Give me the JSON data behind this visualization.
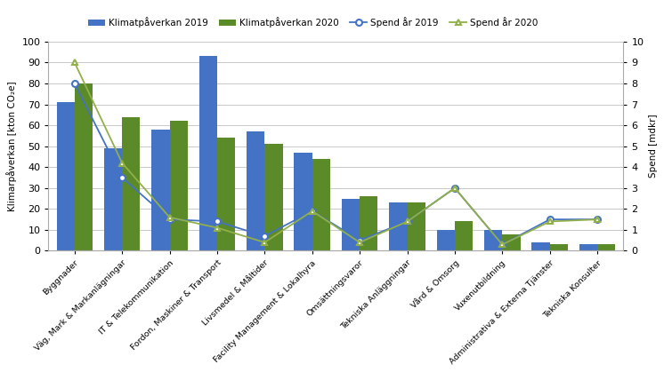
{
  "categories": [
    "Byggnader",
    "Väg, Mark & Markanlägningar",
    "IT & Telekommunikation",
    "Fordon, Maskiner & Transport",
    "Livsmedel & Måltider",
    "Facility Management & Lokalhyra",
    "Omsättningsvaror",
    "Tekniska Anläggningar",
    "Vård & Omsorg",
    "Vuxenutbildning",
    "Administrativa & Externa Tjänster",
    "Tekniska Konsulter"
  ],
  "klimat_2019": [
    71,
    49,
    58,
    93,
    57,
    47,
    25,
    23,
    10,
    10,
    4,
    3
  ],
  "klimat_2020": [
    80,
    64,
    62,
    54,
    51,
    44,
    26,
    23,
    14,
    8,
    3,
    3
  ],
  "spend_2019": [
    8.0,
    3.5,
    1.5,
    1.4,
    0.7,
    1.9,
    0.5,
    1.4,
    3.0,
    0.3,
    1.5,
    1.5
  ],
  "spend_2020": [
    9.0,
    4.2,
    1.6,
    1.1,
    0.4,
    1.9,
    0.4,
    1.4,
    3.0,
    0.3,
    1.4,
    1.5
  ],
  "bar_color_2019": "#4472C4",
  "bar_color_2020": "#5B8A28",
  "line_color_2019": "#4472C4",
  "line_color_2020": "#92B04A",
  "ylabel_left": "Klimarpåverkan [kton CO₂e]",
  "ylabel_right": "Spend [mdkr]",
  "ylim_left": [
    0,
    100
  ],
  "ylim_right": [
    0,
    10
  ],
  "yticks_left": [
    0,
    10,
    20,
    30,
    40,
    50,
    60,
    70,
    80,
    90,
    100
  ],
  "yticks_right": [
    0,
    1,
    2,
    3,
    4,
    5,
    6,
    7,
    8,
    9,
    10
  ],
  "legend_labels": [
    "Klimatpåverkan 2019",
    "Klimatpåverkan 2020",
    "Spend år 2019",
    "Spend år 2020"
  ],
  "background_color": "#FFFFFF",
  "bar_width": 0.38,
  "grid_color": "#C8C8C8",
  "spine_color": "#AAAAAA"
}
